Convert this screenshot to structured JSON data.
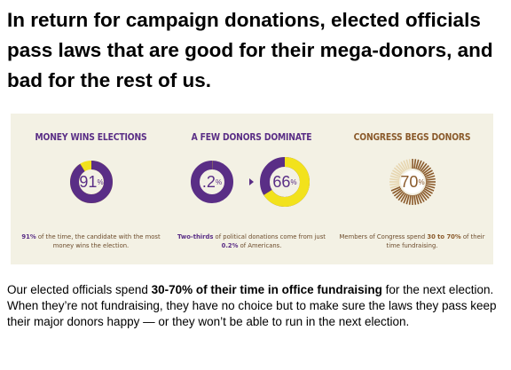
{
  "headline": "In return for campaign donations, elected officials pass laws that are good for their mega-donors, and bad for the rest of us.",
  "infographic": {
    "panels": [
      {
        "title": "MONEY WINS ELECTIONS",
        "percent_value": 91,
        "percent_label": "91",
        "caption_bold": "91%",
        "caption_rest": " of the time, the candidate with the most money wins the election."
      },
      {
        "title": "A FEW DONORS DOMINATE",
        "small_percent_value": 0.2,
        "small_percent_label": ".2",
        "large_percent_value": 66,
        "large_percent_label": "66",
        "caption_bold1": "Two-thirds",
        "caption_mid": " of political donations come from just ",
        "caption_bold2": "0.2%",
        "caption_end": " of Americans."
      },
      {
        "title": "CONGRESS BEGS DONORS",
        "percent_value": 70,
        "percent_label": "70",
        "caption_start": "Members of Congress spend ",
        "caption_bold": "30 to 70%",
        "caption_end": " of their time fundraising."
      }
    ],
    "percent_sign": "%",
    "colors": {
      "background": "#f3f1e4",
      "purple": "#5a2e86",
      "yellow": "#f2e21c",
      "brown": "#8a5a2b",
      "tan": "#e7d6b0"
    }
  },
  "body": {
    "start": "Our elected officials spend ",
    "bold": "30-70% of their time in office fundraising",
    "end": " for the next election. When they’re not fundraising, they have no choice but to make sure the laws they pass keep their major donors happy — or they won’t be able to run in the next election."
  }
}
